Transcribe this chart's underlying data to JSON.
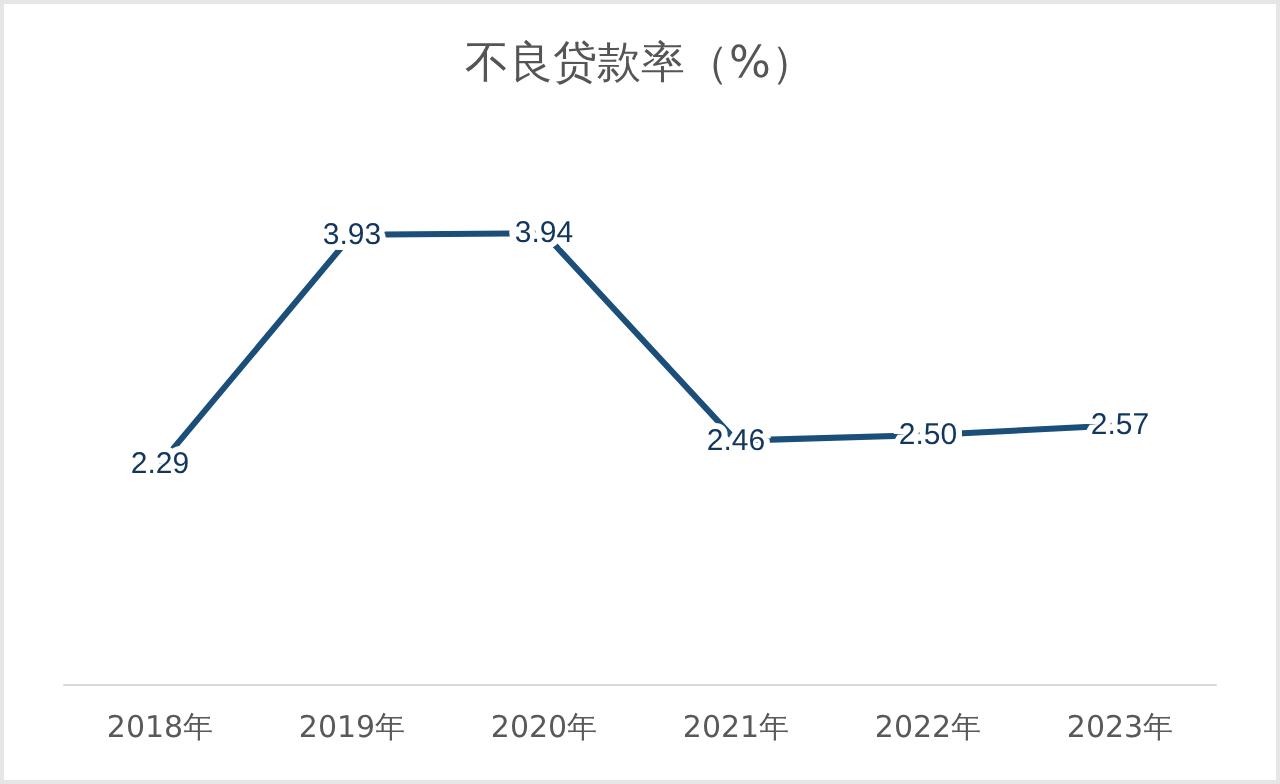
{
  "chart_data": {
    "type": "line",
    "title": "不良贷款率（%）",
    "categories": [
      "2018年",
      "2019年",
      "2020年",
      "2021年",
      "2022年",
      "2023年"
    ],
    "series": [
      {
        "color": "#1b4f7a",
        "values": [
          2.29,
          3.93,
          3.94,
          2.46,
          2.5,
          2.57
        ],
        "value_labels": [
          "2.29",
          "3.93",
          "3.94",
          "2.46",
          "2.50",
          "2.57"
        ]
      }
    ]
  }
}
